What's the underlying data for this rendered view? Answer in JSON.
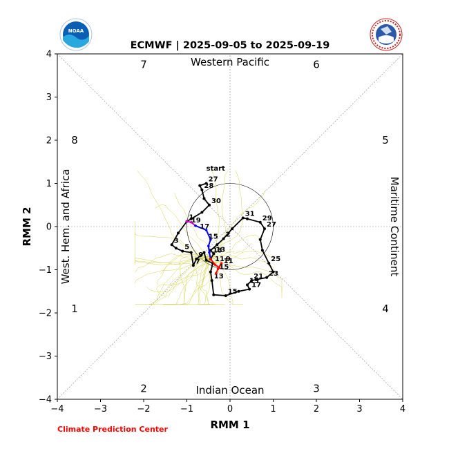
{
  "logos": {
    "left": {
      "icon": "noaa-logo",
      "text": "NOAA"
    },
    "right": {
      "icon": "nws-logo",
      "text": "NATIONAL WEATHER SERVICE"
    }
  },
  "credit": "Climate Prediction Center",
  "chart_data": {
    "type": "line",
    "title": "ECMWF | 2025-09-05 to 2025-09-19",
    "xlabel": "RMM 1",
    "ylabel": "RMM 2",
    "xlim": [
      -4,
      4
    ],
    "ylim": [
      -4,
      4
    ],
    "xticks": [
      "−4",
      "−3",
      "−2",
      "−1",
      "0",
      "1",
      "2",
      "3",
      "4"
    ],
    "yticks": [
      "−4",
      "−3",
      "−2",
      "−1",
      "0",
      "1",
      "2",
      "3",
      "4"
    ],
    "regions": {
      "top": "Western Pacific",
      "bottom": "Indian Ocean",
      "left": "West. Hem. and Africa",
      "right": "Maritime Continent"
    },
    "phases": [
      "1",
      "2",
      "3",
      "4",
      "5",
      "6",
      "7",
      "8"
    ],
    "colors": {
      "observed": "#000000",
      "ensemble": "#cccc33",
      "forecast_blue": "#0000ff",
      "forecast_magenta": "#cc00cc",
      "forecast_red": "#ff0000",
      "credit": "#ff0000"
    },
    "observed_series": {
      "name": "",
      "points": [
        {
          "x": -0.55,
          "y": 1.0,
          "label": "27"
        },
        {
          "x": -0.7,
          "y": 0.95,
          "label": ""
        },
        {
          "x": -0.65,
          "y": 0.85,
          "label": "28"
        },
        {
          "x": -0.6,
          "y": 0.65,
          "label": ""
        },
        {
          "x": -0.48,
          "y": 0.5,
          "label": "30"
        },
        {
          "x": -0.65,
          "y": 0.33,
          "label": ""
        },
        {
          "x": -0.9,
          "y": 0.18,
          "label": ""
        },
        {
          "x": -1.0,
          "y": 0.12,
          "label": "1"
        },
        {
          "x": -1.2,
          "y": -0.15,
          "label": ""
        },
        {
          "x": -1.35,
          "y": -0.42,
          "label": "3"
        },
        {
          "x": -1.25,
          "y": -0.5,
          "label": ""
        },
        {
          "x": -1.1,
          "y": -0.57,
          "label": "5"
        },
        {
          "x": -0.9,
          "y": -0.6,
          "label": ""
        },
        {
          "x": -0.85,
          "y": -0.9,
          "label": "7"
        },
        {
          "x": -0.78,
          "y": -0.75,
          "label": "9"
        },
        {
          "x": -0.6,
          "y": -0.6,
          "label": ""
        },
        {
          "x": -0.55,
          "y": -0.78,
          "label": ""
        },
        {
          "x": -0.4,
          "y": -0.85,
          "label": "11"
        },
        {
          "x": -0.45,
          "y": -1.05,
          "label": ""
        },
        {
          "x": -0.42,
          "y": -1.25,
          "label": "13"
        },
        {
          "x": -0.38,
          "y": -1.58,
          "label": ""
        },
        {
          "x": -0.1,
          "y": -1.6,
          "label": "15"
        },
        {
          "x": 0.2,
          "y": -1.5,
          "label": ""
        },
        {
          "x": 0.45,
          "y": -1.45,
          "label": "17"
        },
        {
          "x": 0.4,
          "y": -1.35,
          "label": "19"
        },
        {
          "x": 0.5,
          "y": -1.25,
          "label": "21"
        },
        {
          "x": 0.85,
          "y": -1.18,
          "label": "23"
        },
        {
          "x": 1.0,
          "y": -1.05,
          "label": ""
        },
        {
          "x": 0.9,
          "y": -0.85,
          "label": "25"
        },
        {
          "x": 0.75,
          "y": -0.55,
          "label": ""
        },
        {
          "x": 0.7,
          "y": -0.3,
          "label": ""
        },
        {
          "x": 0.8,
          "y": -0.05,
          "label": "27"
        },
        {
          "x": 0.7,
          "y": 0.1,
          "label": "29"
        },
        {
          "x": 0.4,
          "y": 0.18,
          "label": ""
        },
        {
          "x": 0.3,
          "y": 0.2,
          "label": "31"
        },
        {
          "x": 0.05,
          "y": -0.05,
          "label": ""
        },
        {
          "x": -0.15,
          "y": -0.28,
          "label": "2"
        },
        {
          "x": -0.3,
          "y": -0.42,
          "label": ""
        },
        {
          "x": -0.45,
          "y": -0.55,
          "label": ""
        },
        {
          "x": -0.38,
          "y": -0.63,
          "label": "13"
        },
        {
          "x": -0.45,
          "y": -0.75,
          "label": ""
        }
      ]
    },
    "forecast_series": [
      {
        "name": "",
        "color": "#cc00cc",
        "x": [
          -1.0,
          -0.9,
          -0.8
        ],
        "y": [
          0.12,
          0.1,
          0.02
        ]
      },
      {
        "name": "",
        "color": "#0000ff",
        "x": [
          -0.8,
          -0.55,
          -0.45,
          -0.5,
          -0.48,
          -0.45
        ],
        "y": [
          0.02,
          -0.08,
          -0.3,
          -0.45,
          -0.6,
          -0.75
        ]
      },
      {
        "name": "",
        "color": "#ff0000",
        "x": [
          -0.45,
          -0.35,
          -0.25,
          -0.2,
          -0.28,
          -0.32
        ],
        "y": [
          -0.75,
          -0.88,
          -0.95,
          -0.85,
          -0.98,
          -1.08
        ]
      }
    ],
    "forecast_labels": [
      {
        "x": -0.9,
        "y": 0.1,
        "text": "19"
      },
      {
        "x": -0.7,
        "y": -0.05,
        "text": "17"
      },
      {
        "x": -0.5,
        "y": -0.28,
        "text": "15"
      },
      {
        "x": -0.4,
        "y": -0.6,
        "text": "13"
      },
      {
        "x": -0.15,
        "y": -0.85,
        "text": "11"
      },
      {
        "x": -0.25,
        "y": -0.98,
        "text": "15"
      },
      {
        "x": -0.1,
        "y": -0.8,
        "text": "9"
      }
    ],
    "start_label": {
      "x": -0.55,
      "y": 1.3,
      "text": "start"
    }
  }
}
